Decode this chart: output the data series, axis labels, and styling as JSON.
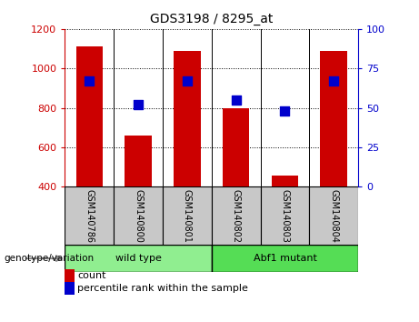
{
  "title": "GDS3198 / 8295_at",
  "samples": [
    "GSM140786",
    "GSM140800",
    "GSM140801",
    "GSM140802",
    "GSM140803",
    "GSM140804"
  ],
  "bar_values": [
    1110,
    660,
    1090,
    800,
    455,
    1090
  ],
  "dot_values": [
    67,
    52,
    67,
    55,
    48,
    67
  ],
  "bar_color": "#cc0000",
  "dot_color": "#0000cc",
  "ylim_left": [
    400,
    1200
  ],
  "ylim_right": [
    0,
    100
  ],
  "yticks_left": [
    400,
    600,
    800,
    1000,
    1200
  ],
  "yticks_right": [
    0,
    25,
    50,
    75,
    100
  ],
  "groups": [
    {
      "label": "wild type",
      "indices": [
        0,
        1,
        2
      ],
      "color": "#90ee90"
    },
    {
      "label": "Abf1 mutant",
      "indices": [
        3,
        4,
        5
      ],
      "color": "#55dd55"
    }
  ],
  "group_label": "genotype/variation",
  "legend_count_label": "count",
  "legend_pct_label": "percentile rank within the sample",
  "sample_box_color": "#c8c8c8"
}
